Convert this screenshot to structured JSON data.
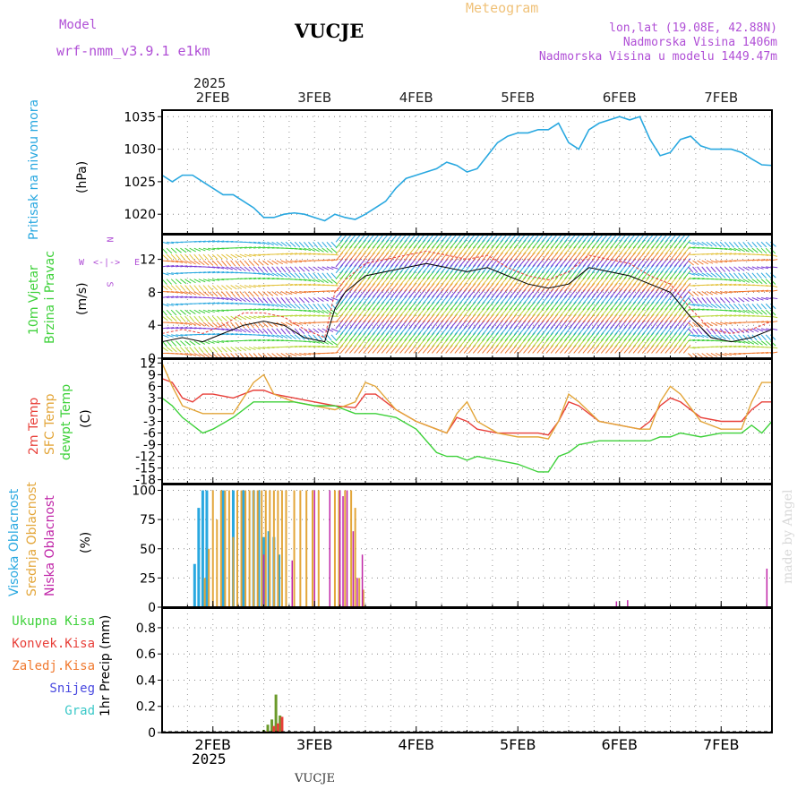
{
  "header": {
    "model_label": "Model",
    "model_name": "wrf-nmm_v3.9.1  e1km",
    "station": "VUCJE",
    "meteogram": "Meteogram",
    "coords": "lon,lat (19.08E, 42.88N)",
    "elevation": "Nadmorska Visina 1406m",
    "model_elevation": "Nadmorska Visina u modelu 1449.47m",
    "footer_station": "VUCJE",
    "credit": "made by Angel"
  },
  "time_axis": {
    "top_year": "2025",
    "bottom_year": "2025",
    "days": [
      "2FEB",
      "3FEB",
      "4FEB",
      "5FEB",
      "6FEB",
      "7FEB"
    ]
  },
  "labels": {
    "pressure": [
      "Pritisak na nivou mora",
      "(hPa)"
    ],
    "wind": [
      "10m Vjetar",
      "Brzina i Pravac",
      "(m/s)"
    ],
    "compass": [
      "N",
      "S",
      "W",
      "E"
    ],
    "temp": [
      "2m Temp",
      "SFC Temp",
      "dewpt Temp",
      "(C)"
    ],
    "cloud": [
      "Visoka Oblacnost",
      "Srednja Oblacnost",
      "Niska Oblacnost",
      "(%)"
    ],
    "precip_legend": [
      "Ukupna Kisa",
      "Konvek.Kisa",
      "Zaledj.Kisa",
      "Snijeg",
      "Grad"
    ],
    "precip_unit": "1hr Precip (mm)"
  },
  "colors": {
    "pressure": "#29a8e0",
    "temp2m": "#e8403a",
    "sfc": "#e3a63a",
    "dewpt": "#3ed13a",
    "high_cloud": "#29a8e0",
    "mid_cloud": "#e3a63a",
    "low_cloud": "#c026a8",
    "total_rain": "#3ed13a",
    "conv_rain": "#e8403a",
    "frz_rain": "#f07a30",
    "snow": "#4a4ae0",
    "hail": "#3ac8c8",
    "purple_label": "#b04fd6"
  },
  "chart_data": [
    {
      "type": "line",
      "name": "pressure",
      "ylabel": "Pritisak na nivou mora (hPa)",
      "ylim": [
        1017,
        1036
      ],
      "yticks": [
        1020,
        1025,
        1030,
        1035
      ],
      "xlim": [
        1.5,
        7.5
      ],
      "grid": true,
      "series": [
        {
          "name": "Pritisak na nivou mora",
          "x": [
            1.5,
            1.6,
            1.7,
            1.8,
            1.9,
            2.0,
            2.1,
            2.2,
            2.3,
            2.4,
            2.5,
            2.6,
            2.7,
            2.8,
            2.9,
            3.0,
            3.1,
            3.2,
            3.3,
            3.4,
            3.5,
            3.6,
            3.7,
            3.8,
            3.9,
            4.0,
            4.1,
            4.2,
            4.3,
            4.4,
            4.5,
            4.6,
            4.7,
            4.8,
            4.9,
            5.0,
            5.1,
            5.2,
            5.3,
            5.4,
            5.5,
            5.6,
            5.7,
            5.8,
            5.9,
            6.0,
            6.1,
            6.2,
            6.3,
            6.4,
            6.5,
            6.6,
            6.7,
            6.8,
            6.9,
            7.0,
            7.1,
            7.2,
            7.3,
            7.4,
            7.5
          ],
          "values": [
            1026,
            1025,
            1026,
            1026,
            1025,
            1024,
            1023,
            1023,
            1022,
            1021,
            1019.5,
            1019.5,
            1020,
            1020.2,
            1020,
            1019.5,
            1019,
            1020,
            1019.5,
            1019.2,
            1020,
            1021,
            1022,
            1024,
            1025.5,
            1026,
            1026.5,
            1027,
            1028,
            1027.5,
            1026.5,
            1027,
            1029,
            1031,
            1032,
            1032.5,
            1032.5,
            1033,
            1033,
            1034,
            1031,
            1030,
            1033,
            1034,
            1034.5,
            1035,
            1034.5,
            1035,
            1031.5,
            1029,
            1029.5,
            1031.5,
            1032,
            1030.5,
            1030,
            1030,
            1030,
            1029.5,
            1028.5,
            1027.6,
            1027.5
          ]
        }
      ]
    },
    {
      "type": "line",
      "name": "wind",
      "ylabel": "10m Vjetar Brzina i Pravac (m/s)",
      "ylim": [
        0,
        15
      ],
      "yticks": [
        0,
        4,
        8,
        12
      ],
      "xlim": [
        1.5,
        7.5
      ],
      "grid": true,
      "series": [
        {
          "name": "speed",
          "x": [
            1.5,
            1.7,
            1.9,
            2.1,
            2.3,
            2.5,
            2.7,
            2.9,
            3.1,
            3.2,
            3.3,
            3.5,
            3.7,
            3.9,
            4.1,
            4.3,
            4.5,
            4.7,
            4.9,
            5.1,
            5.3,
            5.5,
            5.7,
            5.9,
            6.1,
            6.3,
            6.5,
            6.7,
            6.9,
            7.1,
            7.3,
            7.5
          ],
          "values": [
            2,
            2.5,
            2,
            3,
            4,
            4.5,
            4,
            2.5,
            2,
            6,
            8,
            10,
            10.5,
            11,
            11.5,
            11,
            10.5,
            11,
            10,
            9,
            8.5,
            9,
            11,
            10.5,
            10,
            9,
            8,
            5,
            2.5,
            2,
            2.5,
            3.5
          ]
        },
        {
          "name": "gust",
          "x": [
            1.5,
            1.7,
            1.9,
            2.1,
            2.3,
            2.5,
            2.7,
            2.9,
            3.1,
            3.2,
            3.3,
            3.5,
            3.7,
            3.9,
            4.1,
            4.3,
            4.5,
            4.7,
            4.9,
            5.1,
            5.3,
            5.5,
            5.7,
            5.9,
            6.1,
            6.3,
            6.5,
            6.7,
            6.9,
            7.1,
            7.3,
            7.5
          ],
          "values": [
            3,
            3.5,
            3,
            4,
            5.5,
            5.5,
            5,
            3.5,
            2.5,
            8,
            9.5,
            11.5,
            12,
            12.5,
            13,
            12.5,
            12,
            12.5,
            11,
            10,
            9.5,
            10.5,
            12.5,
            12,
            11.5,
            10,
            9,
            6,
            3.5,
            3,
            3.5,
            4.5
          ]
        }
      ]
    },
    {
      "type": "line",
      "name": "temperature",
      "ylabel": "(C)",
      "ylim": [
        -19,
        13
      ],
      "yticks": [
        12,
        9,
        6,
        3,
        0,
        -3,
        -6,
        -9,
        -12,
        -15,
        -18
      ],
      "xlim": [
        1.5,
        7.5
      ],
      "grid": true,
      "series": [
        {
          "name": "2m Temp",
          "x": [
            1.5,
            1.6,
            1.7,
            1.8,
            1.9,
            2.0,
            2.2,
            2.4,
            2.5,
            2.6,
            2.8,
            3.0,
            3.2,
            3.4,
            3.5,
            3.6,
            3.8,
            4.0,
            4.2,
            4.3,
            4.4,
            4.5,
            4.6,
            4.8,
            5.0,
            5.2,
            5.3,
            5.4,
            5.5,
            5.6,
            5.8,
            6.0,
            6.2,
            6.3,
            6.4,
            6.5,
            6.6,
            6.8,
            7.0,
            7.2,
            7.3,
            7.4,
            7.5
          ],
          "values": [
            8,
            7,
            3,
            2,
            4,
            4,
            3,
            5,
            5,
            4,
            3,
            2,
            1,
            0.5,
            4,
            4,
            0,
            -3,
            -5,
            -6,
            -2,
            -3,
            -5,
            -6,
            -6,
            -6,
            -6.5,
            -3,
            2,
            1,
            -3,
            -4,
            -5,
            -3,
            1,
            3,
            2,
            -2,
            -3,
            -3,
            0,
            2,
            2
          ]
        },
        {
          "name": "SFC Temp",
          "x": [
            1.5,
            1.6,
            1.7,
            1.8,
            1.9,
            2.0,
            2.2,
            2.4,
            2.5,
            2.6,
            2.8,
            3.0,
            3.2,
            3.4,
            3.5,
            3.6,
            3.8,
            4.0,
            4.2,
            4.3,
            4.4,
            4.5,
            4.6,
            4.8,
            5.0,
            5.2,
            5.3,
            5.4,
            5.5,
            5.6,
            5.8,
            6.0,
            6.2,
            6.3,
            6.4,
            6.5,
            6.6,
            6.8,
            7.0,
            7.2,
            7.3,
            7.4,
            7.5
          ],
          "values": [
            12,
            6,
            1,
            0,
            -1,
            -1,
            -1,
            7,
            9,
            4,
            2,
            1,
            0,
            2,
            7,
            6,
            0,
            -3,
            -5,
            -6,
            -1,
            2,
            -3,
            -6,
            -7,
            -7,
            -7.5,
            -3,
            4,
            2,
            -3,
            -4,
            -5,
            -5,
            2,
            6,
            4,
            -3,
            -5,
            -5,
            2,
            7,
            7
          ]
        },
        {
          "name": "dewpt Temp",
          "x": [
            1.5,
            1.6,
            1.7,
            1.8,
            1.9,
            2.0,
            2.2,
            2.4,
            2.5,
            2.6,
            2.8,
            3.0,
            3.2,
            3.4,
            3.5,
            3.6,
            3.8,
            4.0,
            4.2,
            4.3,
            4.4,
            4.5,
            4.6,
            4.8,
            5.0,
            5.2,
            5.3,
            5.4,
            5.5,
            5.6,
            5.8,
            6.0,
            6.2,
            6.3,
            6.4,
            6.5,
            6.6,
            6.8,
            7.0,
            7.2,
            7.3,
            7.4,
            7.5
          ],
          "values": [
            3,
            1,
            -2,
            -4,
            -6,
            -5,
            -2,
            2,
            2,
            2,
            2,
            1,
            1,
            -1,
            -1,
            -1,
            -2,
            -5,
            -11,
            -12,
            -12,
            -13,
            -12,
            -13,
            -14,
            -16,
            -16,
            -12,
            -11,
            -9,
            -8,
            -8,
            -8,
            -8,
            -7,
            -7,
            -6,
            -7,
            -6,
            -6,
            -4,
            -6,
            -3
          ]
        }
      ]
    },
    {
      "type": "bar",
      "name": "cloud",
      "ylabel": "(%)",
      "ylim": [
        0,
        105
      ],
      "yticks": [
        0,
        25,
        50,
        75,
        100
      ],
      "xlim": [
        1.5,
        7.5
      ],
      "grid": true,
      "series": [
        {
          "name": "Visoka Oblacnost",
          "x": [
            1.82,
            1.86,
            1.9,
            1.94,
            2.1,
            2.2,
            2.3,
            2.4,
            2.45,
            2.5,
            2.55,
            2.6,
            2.65
          ],
          "values": [
            37,
            85,
            100,
            100,
            100,
            100,
            100,
            100,
            100,
            60,
            65,
            60,
            45
          ]
        },
        {
          "name": "Srednja Oblacnost",
          "x": [
            1.92,
            1.96,
            2.0,
            2.04,
            2.08,
            2.12,
            2.16,
            2.2,
            2.24,
            2.28,
            2.32,
            2.36,
            2.4,
            2.44,
            2.48,
            2.52,
            2.56,
            2.6,
            2.64,
            2.68,
            2.72,
            2.8,
            2.86,
            2.92,
            2.98,
            3.04,
            3.2,
            3.24,
            3.3,
            3.36,
            3.4,
            3.44,
            3.48
          ],
          "values": [
            25,
            50,
            100,
            75,
            100,
            100,
            100,
            60,
            100,
            100,
            100,
            100,
            100,
            100,
            100,
            100,
            100,
            100,
            100,
            100,
            100,
            100,
            100,
            100,
            100,
            100,
            100,
            100,
            100,
            100,
            85,
            25,
            15
          ]
        },
        {
          "name": "Niska Oblacnost",
          "x": [
            2.5,
            2.78,
            3.0,
            3.15,
            3.25,
            3.28,
            3.32,
            3.38,
            3.42,
            3.47,
            5.97,
            6.08,
            7.45
          ],
          "values": [
            45,
            40,
            100,
            100,
            100,
            95,
            100,
            65,
            25,
            45,
            5,
            6,
            33
          ]
        }
      ]
    },
    {
      "type": "bar",
      "name": "precip",
      "ylabel": "1hr Precip (mm)",
      "ylim": [
        0,
        0.95
      ],
      "yticks": [
        0,
        0.2,
        0.4,
        0.6,
        0.8
      ],
      "xlim": [
        1.5,
        7.5
      ],
      "grid": true,
      "series": [
        {
          "name": "Ukupna Kisa",
          "x": [
            2.5,
            2.54,
            2.58,
            2.62,
            2.66
          ],
          "values": [
            0.02,
            0.06,
            0.1,
            0.29,
            0.13
          ]
        },
        {
          "name": "Konvek.Kisa",
          "x": [
            2.52,
            2.6,
            2.64,
            2.68
          ],
          "values": [
            0.01,
            0.05,
            0.07,
            0.12
          ]
        }
      ]
    }
  ]
}
